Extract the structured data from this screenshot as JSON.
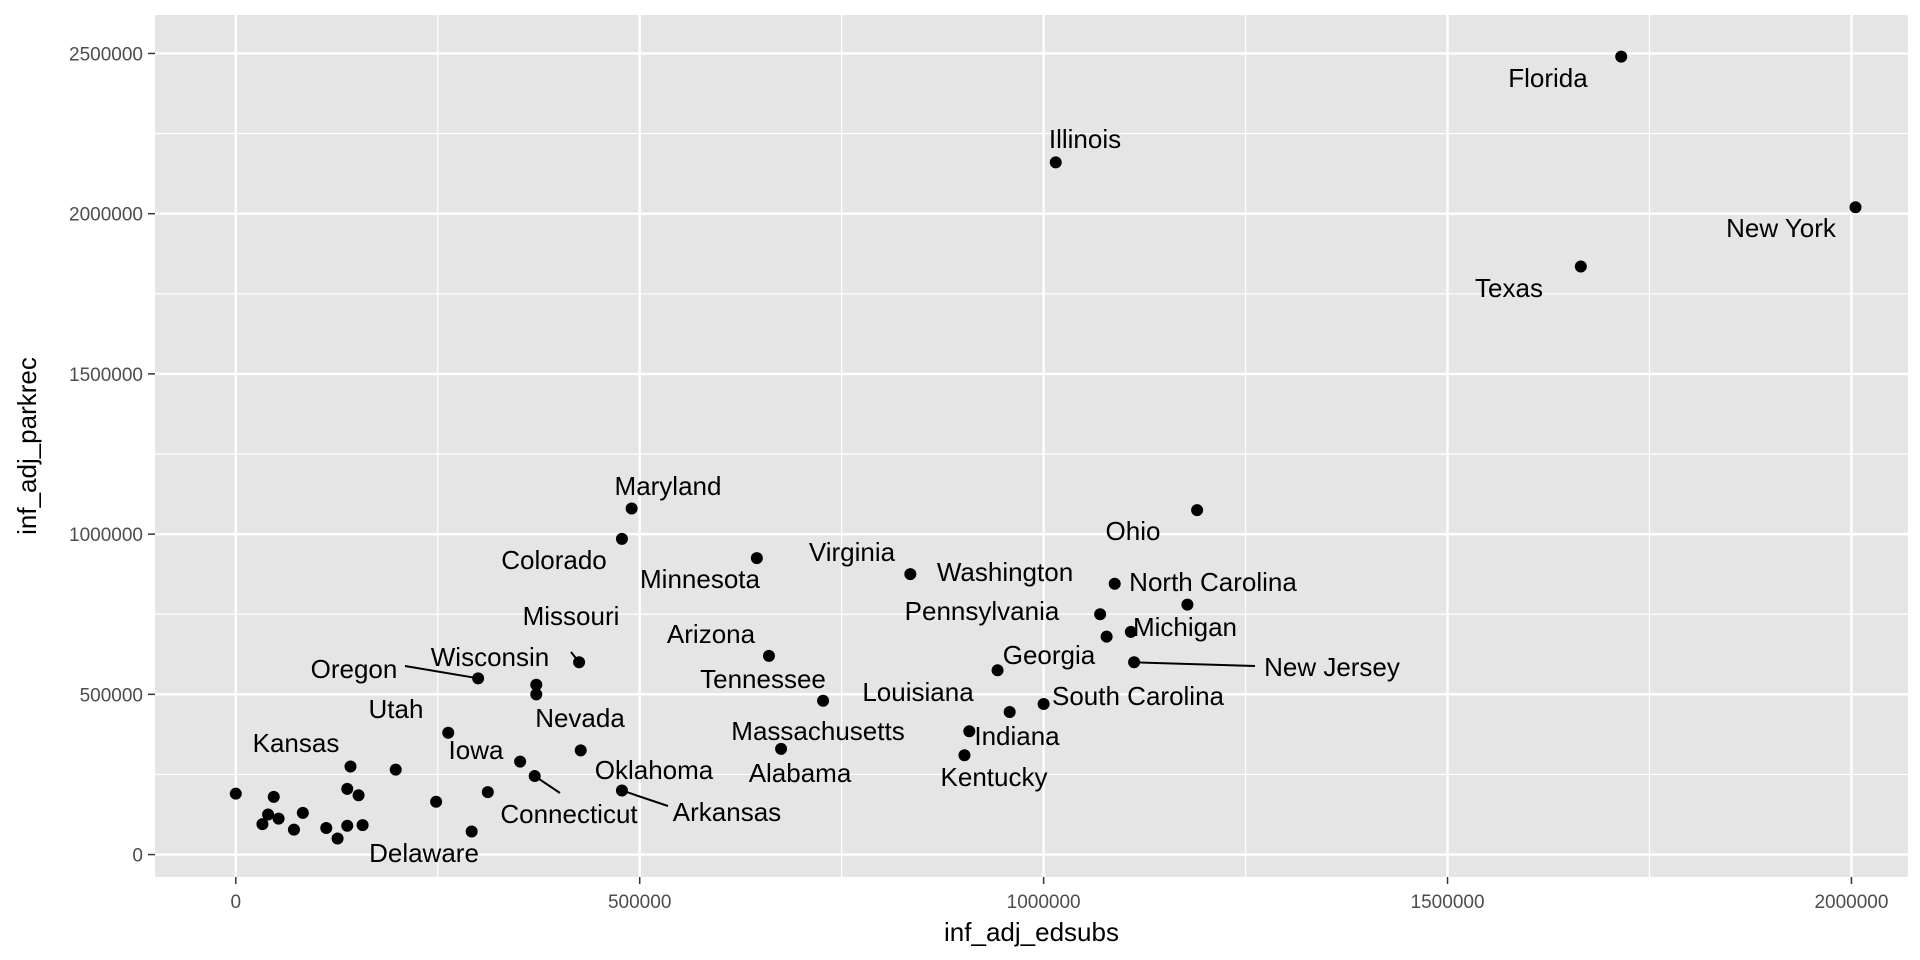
{
  "chart_data": {
    "type": "scatter",
    "xlabel": "inf_adj_edsubs",
    "ylabel": "inf_adj_parkrec",
    "xlim": [
      -100000,
      2070000
    ],
    "ylim": [
      -70000,
      2620000
    ],
    "x_ticks": [
      0,
      500000,
      1000000,
      1500000,
      2000000
    ],
    "x_tick_labels": [
      "0",
      "500000",
      "1000000",
      "1500000",
      "2000000"
    ],
    "y_ticks": [
      0,
      500000,
      1000000,
      1500000,
      2000000,
      2500000
    ],
    "y_tick_labels": [
      "0",
      "500000",
      "1000000",
      "1500000",
      "2000000",
      "2500000"
    ],
    "grid": true,
    "background": "#e5e5e5",
    "point_color": "#000000",
    "points": [
      {
        "x": 1715000,
        "y": 2490000,
        "label": "Florida"
      },
      {
        "x": 1015000,
        "y": 2160000,
        "label": "Illinois"
      },
      {
        "x": 2005000,
        "y": 2020000,
        "label": "New York"
      },
      {
        "x": 1665000,
        "y": 1835000,
        "label": "Texas"
      },
      {
        "x": 490000,
        "y": 1080000,
        "label": "Maryland"
      },
      {
        "x": 1190000,
        "y": 1075000,
        "label": "Ohio"
      },
      {
        "x": 478000,
        "y": 985000,
        "label": "Colorado"
      },
      {
        "x": 645000,
        "y": 925000,
        "label": "Minnesota"
      },
      {
        "x": 835000,
        "y": 875000,
        "label": "Virginia"
      },
      {
        "x": 1088000,
        "y": 845000,
        "label": "Washington"
      },
      {
        "x": 1178000,
        "y": 780000,
        "label": "North Carolina"
      },
      {
        "x": 1070000,
        "y": 750000,
        "label": "Pennsylvania"
      },
      {
        "x": 1108000,
        "y": 695000,
        "label": "Michigan"
      },
      {
        "x": 1078000,
        "y": 680000,
        "label": ""
      },
      {
        "x": 660000,
        "y": 620000,
        "label": "Arizona"
      },
      {
        "x": 425000,
        "y": 600000,
        "label": "Missouri"
      },
      {
        "x": 1112000,
        "y": 600000,
        "label": "New Jersey"
      },
      {
        "x": 943000,
        "y": 575000,
        "label": "Georgia"
      },
      {
        "x": 300000,
        "y": 550000,
        "label": "Oregon"
      },
      {
        "x": 372000,
        "y": 530000,
        "label": "Wisconsin"
      },
      {
        "x": 372000,
        "y": 500000,
        "label": ""
      },
      {
        "x": 727000,
        "y": 480000,
        "label": "Tennessee"
      },
      {
        "x": 1000000,
        "y": 470000,
        "label": "South Carolina"
      },
      {
        "x": 958000,
        "y": 445000,
        "label": "Louisiana"
      },
      {
        "x": 263000,
        "y": 380000,
        "label": "Utah"
      },
      {
        "x": 908000,
        "y": 385000,
        "label": "Indiana"
      },
      {
        "x": 675000,
        "y": 330000,
        "label": "Massachusetts"
      },
      {
        "x": 427000,
        "y": 325000,
        "label": "Nevada"
      },
      {
        "x": 902000,
        "y": 310000,
        "label": "Kentucky"
      },
      {
        "x": 352000,
        "y": 290000,
        "label": "Iowa"
      },
      {
        "x": 142000,
        "y": 275000,
        "label": "Kansas"
      },
      {
        "x": 198000,
        "y": 265000,
        "label": ""
      },
      {
        "x": 370000,
        "y": 245000,
        "label": "Connecticut"
      },
      {
        "x": 138000,
        "y": 205000,
        "label": ""
      },
      {
        "x": 478000,
        "y": 200000,
        "label": "Arkansas"
      },
      {
        "x": 312000,
        "y": 195000,
        "label": ""
      },
      {
        "x": 0,
        "y": 190000,
        "label": ""
      },
      {
        "x": 47000,
        "y": 180000,
        "label": ""
      },
      {
        "x": 152000,
        "y": 185000,
        "label": ""
      },
      {
        "x": 248000,
        "y": 165000,
        "label": "Oklahoma"
      },
      {
        "x": 83000,
        "y": 130000,
        "label": ""
      },
      {
        "x": 40000,
        "y": 125000,
        "label": ""
      },
      {
        "x": 53000,
        "y": 112000,
        "label": ""
      },
      {
        "x": 33000,
        "y": 95000,
        "label": ""
      },
      {
        "x": 157000,
        "y": 92000,
        "label": ""
      },
      {
        "x": 138000,
        "y": 90000,
        "label": ""
      },
      {
        "x": 112000,
        "y": 83000,
        "label": ""
      },
      {
        "x": 72000,
        "y": 78000,
        "label": ""
      },
      {
        "x": 292000,
        "y": 72000,
        "label": "Delaware"
      },
      {
        "x": 126000,
        "y": 50000,
        "label": "Alabama"
      }
    ],
    "label_texts": [
      {
        "text": "Florida"
      },
      {
        "text": "Illinois"
      },
      {
        "text": "New York"
      },
      {
        "text": "Texas"
      },
      {
        "text": "Maryland"
      },
      {
        "text": "Ohio"
      },
      {
        "text": "Colorado"
      },
      {
        "text": "Minnesota"
      },
      {
        "text": "Virginia"
      },
      {
        "text": "Washington"
      },
      {
        "text": "North Carolina"
      },
      {
        "text": "Pennsylvania"
      },
      {
        "text": "Michigan"
      },
      {
        "text": "Arizona"
      },
      {
        "text": "Missouri"
      },
      {
        "text": "New Jersey"
      },
      {
        "text": "Georgia"
      },
      {
        "text": "Oregon"
      },
      {
        "text": "Wisconsin"
      },
      {
        "text": "Tennessee"
      },
      {
        "text": "South Carolina"
      },
      {
        "text": "Louisiana"
      },
      {
        "text": "Utah"
      },
      {
        "text": "Indiana"
      },
      {
        "text": "Massachusetts"
      },
      {
        "text": "Nevada"
      },
      {
        "text": "Kentucky"
      },
      {
        "text": "Iowa"
      },
      {
        "text": "Kansas"
      },
      {
        "text": "Connecticut"
      },
      {
        "text": "Arkansas"
      },
      {
        "text": "Oklahoma"
      },
      {
        "text": "Delaware"
      },
      {
        "text": "Alabama"
      }
    ]
  }
}
